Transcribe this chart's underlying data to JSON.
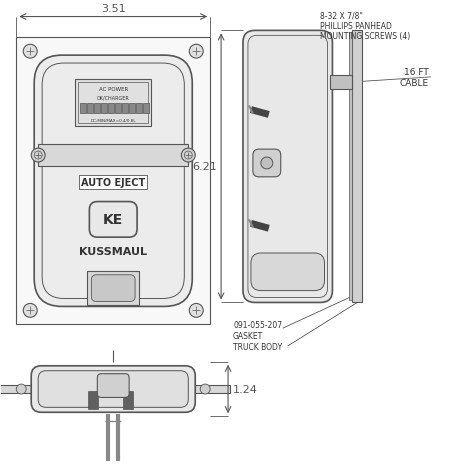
{
  "bg_color": "#ffffff",
  "line_color": "#555555",
  "dim_color": "#555555",
  "text_color": "#333333",
  "dim_351": "3.51",
  "dim_621": "6.21",
  "dim_124": "1.24",
  "label_screws": "8-32 X 7/8\"\nPHILLIPS PANHEAD\nMOUNTING SCREWS (4)",
  "label_cable": "16 FT\nCABLE",
  "label_gasket": "091-055-207\nGASKET",
  "label_truck": "TRUCK BODY",
  "label_auto_eject": "AUTO EJECT",
  "label_kussmaul": "KUSSMAUL",
  "label_ke": "KE",
  "label_ac": "AC POWER",
  "label_ok": "OK/CHARGER"
}
